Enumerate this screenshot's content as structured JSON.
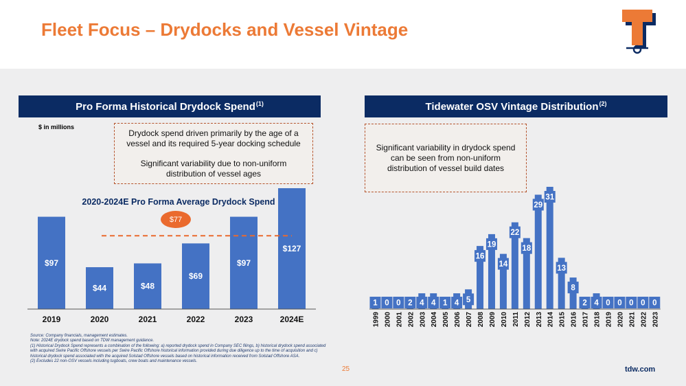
{
  "page": {
    "title": "Fleet Focus – Drydocks and Vessel Vintage",
    "page_number": "25",
    "website": "tdw.com"
  },
  "left_panel": {
    "header": "Pro Forma Historical Drydock Spend",
    "header_sup": "(1)",
    "units_label": "$ in millions",
    "callout": {
      "line1": "Drydock spend driven primarily by the age of a",
      "line2": "vessel and its required 5-year docking schedule",
      "line3": "Significant variability due to non-uniform",
      "line4": "distribution of vessel ages"
    },
    "average_label": "2020-2024E Pro Forma Average Drydock Spend",
    "average_value": "$77"
  },
  "right_panel": {
    "header": "Tidewater OSV Vintage Distribution",
    "header_sup": "(2)",
    "callout": {
      "line1": "Significant variability in drydock spend",
      "line2": "can be seen from non-uniform",
      "line3": "distribution of vessel build dates"
    }
  },
  "footnotes": {
    "source": "Source: Company financials, management estimates.",
    "note": "Note: 2024E drydock spend based on TDW management guidance.",
    "fn1": "(1) Historical Drydock Spend represents a combination of the following: a) reported drydock spend in Company SEC filings, b) historical drydock spend associated with acquired Swire Pacific Offshore vessels per Swire Pacific Offshore historical information provided during due diligence up to the time of acquisition and c) historical drydock spend associated with the acquired Solstad Offshore vessels based on historical information received from Solstad Offshore ASA.",
    "fn2": "(2) Excludes 22 non-OSV vessels including tugboats, crew boats and maintenance vessels."
  },
  "colors": {
    "title_orange": "#ec7a36",
    "navy": "#0b2b63",
    "bar_blue": "#4472c4",
    "avg_line_orange": "#ea6a2e"
  },
  "chart_data": [
    {
      "type": "bar",
      "categories": [
        "2019",
        "2020",
        "2021",
        "2022",
        "2023",
        "2024E"
      ],
      "values": [
        97,
        44,
        48,
        69,
        97,
        127
      ],
      "data_labels": [
        "$97",
        "$44",
        "$48",
        "$69",
        "$97",
        "$127"
      ],
      "reference_line": {
        "value": 77,
        "label": "$77",
        "style": "dashed"
      },
      "title": "Pro Forma Historical Drydock Spend",
      "ylabel": "$ in millions",
      "ylim": [
        0,
        127
      ],
      "grid": false,
      "legend": "none"
    },
    {
      "type": "bar",
      "categories": [
        "1999",
        "2000",
        "2001",
        "2002",
        "2003",
        "2004",
        "2005",
        "2006",
        "2007",
        "2008",
        "2009",
        "2010",
        "2011",
        "2012",
        "2013",
        "2014",
        "2015",
        "2016",
        "2017",
        "2018",
        "2019",
        "2020",
        "2021",
        "2022",
        "2023"
      ],
      "values": [
        1,
        0,
        0,
        2,
        4,
        4,
        1,
        4,
        5,
        16,
        19,
        14,
        22,
        18,
        29,
        31,
        13,
        8,
        2,
        4,
        0,
        0,
        0,
        0,
        0
      ],
      "title": "Tidewater OSV Vintage Distribution",
      "ylim": [
        0,
        31
      ],
      "grid": false,
      "legend": "none"
    }
  ]
}
